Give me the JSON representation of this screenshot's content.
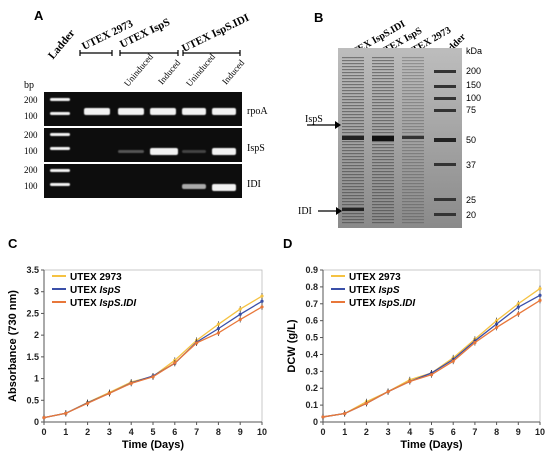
{
  "panelA": {
    "label": "A",
    "ladder": "Ladder",
    "groups": [
      "UTEX 2973",
      "UTEX IspS",
      "UTEX IspS.IDI"
    ],
    "conditions": [
      "Uninduced",
      "Induced",
      "Uninduced",
      "Induced"
    ],
    "bp": "bp",
    "genes": [
      "rpoA",
      "IspS",
      "IDI"
    ],
    "sizes": [
      "200",
      "100"
    ]
  },
  "panelB": {
    "label": "B",
    "lanes": [
      "UTEX IspS.IDI",
      "UTEX IspS",
      "UTEX 2973",
      "Ladder"
    ],
    "kda": "kDa",
    "markers": [
      "200",
      "150",
      "100",
      "75",
      "50",
      "37",
      "25",
      "20"
    ],
    "arrows": [
      "IspS",
      "IDI"
    ]
  },
  "chart_data": [
    {
      "panel": "C",
      "type": "line",
      "ylabel": "Absorbance (730 nm)",
      "xlabel": "Time (Days)",
      "xlim": [
        0,
        10
      ],
      "ylim": [
        0,
        3.5
      ],
      "yticks": [
        "0",
        "0.5",
        "1",
        "1.5",
        "2",
        "2.5",
        "3",
        "3.5"
      ],
      "xticks": [
        "0",
        "1",
        "2",
        "3",
        "4",
        "5",
        "6",
        "7",
        "8",
        "9",
        "10"
      ],
      "x": [
        0,
        1,
        2,
        3,
        4,
        5,
        6,
        7,
        8,
        9,
        10
      ],
      "series": [
        {
          "name": "UTEX 2973",
          "color": "#f5c242",
          "values": [
            0.1,
            0.2,
            0.45,
            0.68,
            0.92,
            1.05,
            1.42,
            1.88,
            2.25,
            2.6,
            2.9
          ]
        },
        {
          "name": "UTEX IspS",
          "color": "#3a4fa8",
          "values": [
            0.1,
            0.2,
            0.44,
            0.66,
            0.9,
            1.06,
            1.35,
            1.84,
            2.15,
            2.48,
            2.78
          ]
        },
        {
          "name": "UTEX IspS.IDI",
          "color": "#e8773a",
          "values": [
            0.1,
            0.2,
            0.43,
            0.66,
            0.89,
            1.04,
            1.36,
            1.82,
            2.05,
            2.36,
            2.65
          ]
        }
      ]
    },
    {
      "panel": "D",
      "type": "line",
      "ylabel": "DCW (g/L)",
      "xlabel": "Time (Days)",
      "xlim": [
        0,
        10
      ],
      "ylim": [
        0,
        0.9
      ],
      "yticks": [
        "0",
        "0.1",
        "0.2",
        "0.3",
        "0.4",
        "0.5",
        "0.6",
        "0.7",
        "0.8",
        "0.9"
      ],
      "xticks": [
        "0",
        "1",
        "2",
        "3",
        "4",
        "5",
        "6",
        "7",
        "8",
        "9",
        "10"
      ],
      "x": [
        0,
        1,
        2,
        3,
        4,
        5,
        6,
        7,
        8,
        9,
        10
      ],
      "series": [
        {
          "name": "UTEX 2973",
          "color": "#f5c242",
          "values": [
            0.03,
            0.05,
            0.12,
            0.18,
            0.25,
            0.29,
            0.38,
            0.49,
            0.6,
            0.7,
            0.79
          ]
        },
        {
          "name": "UTEX IspS",
          "color": "#3a4fa8",
          "values": [
            0.03,
            0.05,
            0.11,
            0.18,
            0.24,
            0.29,
            0.37,
            0.48,
            0.58,
            0.68,
            0.75
          ]
        },
        {
          "name": "UTEX IspS.IDI",
          "color": "#e8773a",
          "values": [
            0.03,
            0.05,
            0.11,
            0.18,
            0.24,
            0.28,
            0.36,
            0.47,
            0.56,
            0.64,
            0.72
          ]
        }
      ]
    }
  ]
}
